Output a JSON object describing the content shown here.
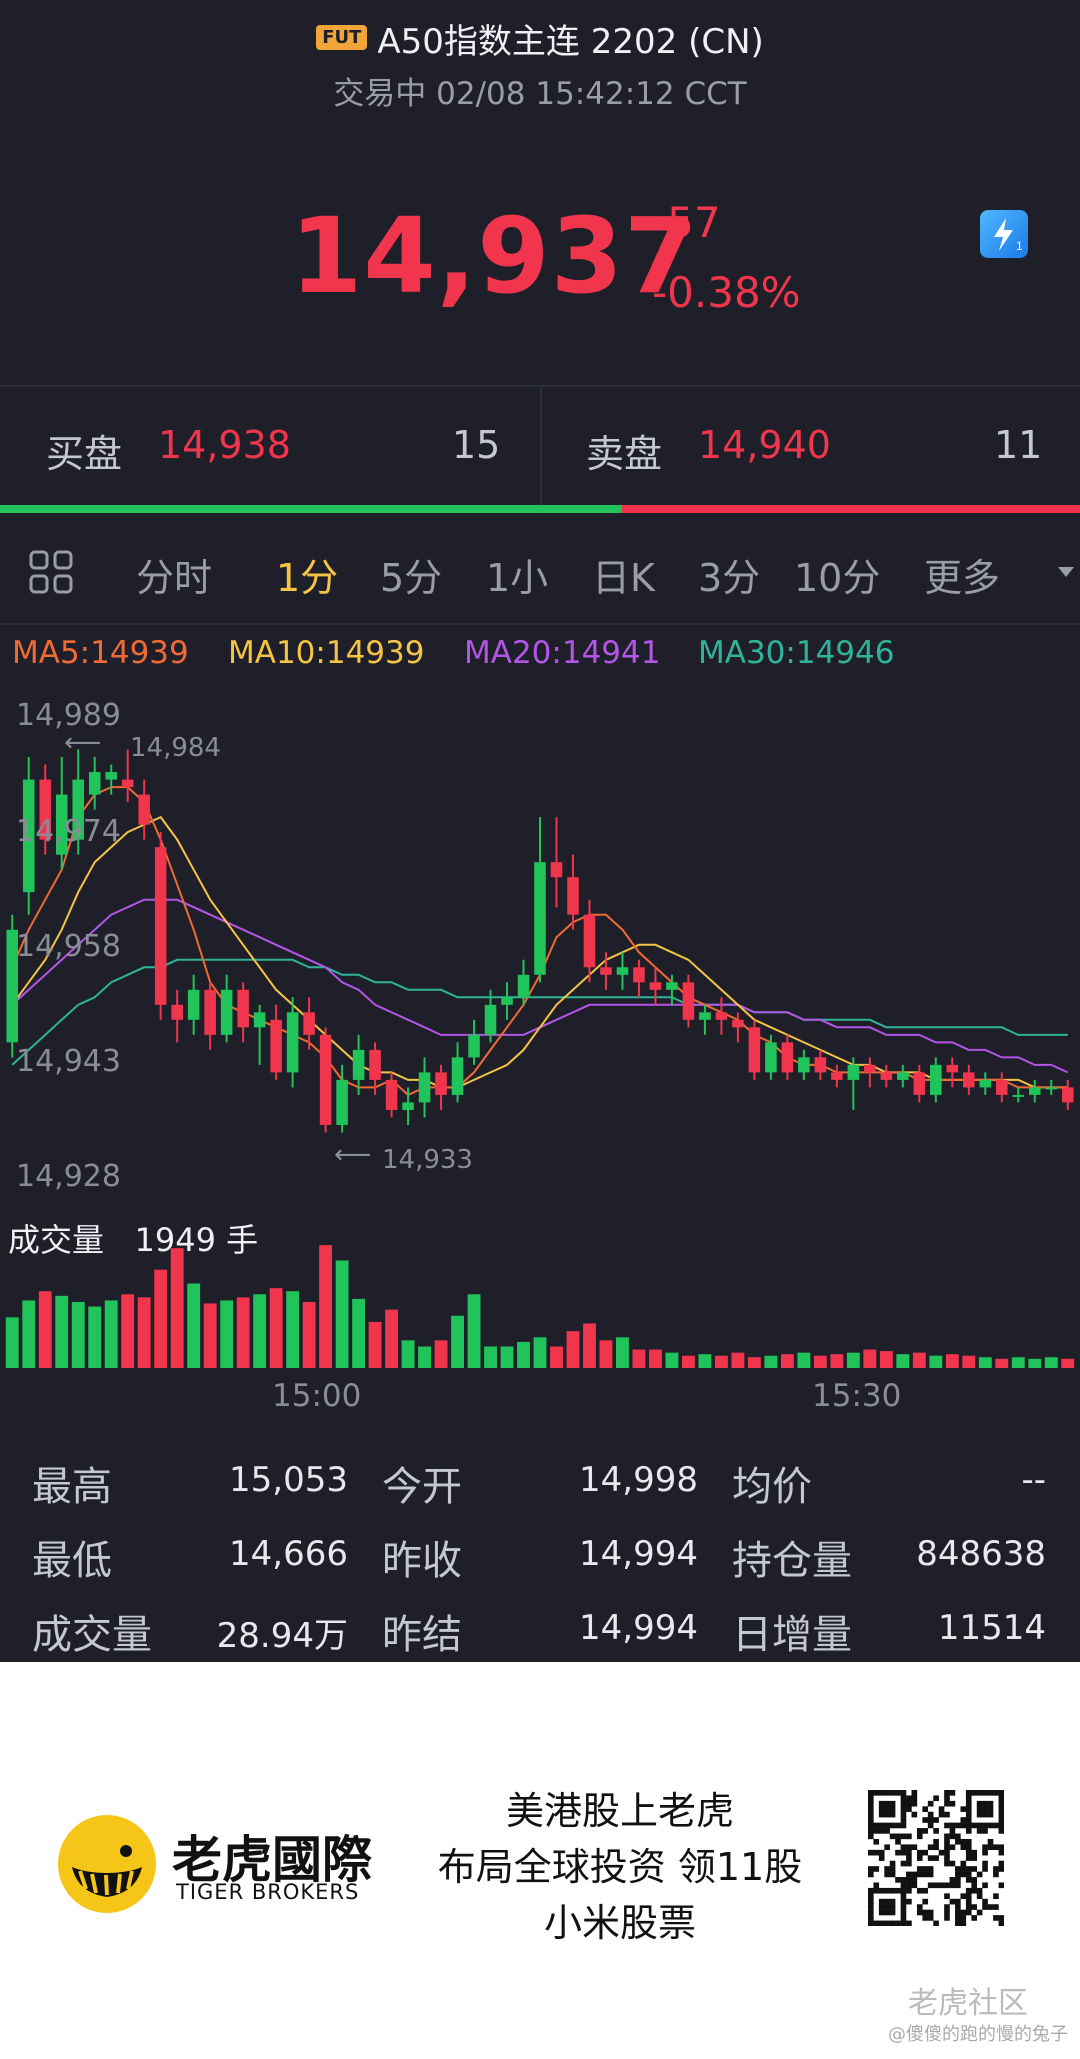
{
  "header": {
    "badge": "FUT",
    "title": "A50指数主连 2202 (CN)",
    "subtitle": "交易中 02/08 15:42:12 CCT",
    "price": "14,937",
    "change": "-57",
    "change_pct": "-0.38%"
  },
  "quote": {
    "bid_label": "买盘",
    "bid_price": "14,938",
    "bid_qty": "15",
    "ask_label": "卖盘",
    "ask_price": "14,940",
    "ask_qty": "11",
    "bid_ratio": 0.576
  },
  "tabs": [
    "分时",
    "1分",
    "5分",
    "1小",
    "日K",
    "3分",
    "10分",
    "更多"
  ],
  "active_tab": "1分",
  "ma": {
    "ma5": "MA5:14939",
    "ma10": "MA10:14939",
    "ma20": "MA20:14941",
    "ma30": "MA30:14946"
  },
  "colors": {
    "up": "#21c45a",
    "down": "#f0354d",
    "ma5": "#f06a35",
    "ma10": "#f5c445",
    "ma20": "#b455e8",
    "ma30": "#2fb39a",
    "active_tab": "#f5c445"
  },
  "chart_data": {
    "type": "candlestick",
    "y_ticks": [
      "14,989",
      "14,974",
      "14,958",
      "14,943",
      "14,928"
    ],
    "y_range": [
      14928,
      14989
    ],
    "high_marker": "14,984",
    "low_marker": "14,933",
    "x_ticks": [
      "15:00",
      "15:30"
    ],
    "candles": [
      {
        "o": 14945,
        "c": 14960,
        "h": 14962,
        "l": 14943
      },
      {
        "o": 14965,
        "c": 14980,
        "h": 14983,
        "l": 14962
      },
      {
        "o": 14980,
        "c": 14972,
        "h": 14982,
        "l": 14970
      },
      {
        "o": 14970,
        "c": 14978,
        "h": 14983,
        "l": 14968
      },
      {
        "o": 14972,
        "c": 14980,
        "h": 14984,
        "l": 14970
      },
      {
        "o": 14978,
        "c": 14981,
        "h": 14983,
        "l": 14976
      },
      {
        "o": 14980,
        "c": 14981,
        "h": 14982,
        "l": 14978
      },
      {
        "o": 14980,
        "c": 14979,
        "h": 14984,
        "l": 14977
      },
      {
        "o": 14978,
        "c": 14974,
        "h": 14980,
        "l": 14972
      },
      {
        "o": 14971,
        "c": 14950,
        "h": 14973,
        "l": 14948
      },
      {
        "o": 14950,
        "c": 14948,
        "h": 14952,
        "l": 14945
      },
      {
        "o": 14948,
        "c": 14952,
        "h": 14954,
        "l": 14946
      },
      {
        "o": 14952,
        "c": 14946,
        "h": 14953,
        "l": 14944
      },
      {
        "o": 14946,
        "c": 14952,
        "h": 14954,
        "l": 14945
      },
      {
        "o": 14952,
        "c": 14947,
        "h": 14953,
        "l": 14945
      },
      {
        "o": 14947,
        "c": 14949,
        "h": 14950,
        "l": 14942
      },
      {
        "o": 14948,
        "c": 14941,
        "h": 14950,
        "l": 14940
      },
      {
        "o": 14941,
        "c": 14949,
        "h": 14951,
        "l": 14939
      },
      {
        "o": 14949,
        "c": 14946,
        "h": 14951,
        "l": 14944
      },
      {
        "o": 14946,
        "c": 14934,
        "h": 14947,
        "l": 14933
      },
      {
        "o": 14934,
        "c": 14940,
        "h": 14942,
        "l": 14933
      },
      {
        "o": 14940,
        "c": 14944,
        "h": 14946,
        "l": 14938
      },
      {
        "o": 14944,
        "c": 14940,
        "h": 14945,
        "l": 14938
      },
      {
        "o": 14940,
        "c": 14936,
        "h": 14941,
        "l": 14935
      },
      {
        "o": 14936,
        "c": 14937,
        "h": 14939,
        "l": 14934
      },
      {
        "o": 14937,
        "c": 14941,
        "h": 14943,
        "l": 14935
      },
      {
        "o": 14941,
        "c": 14938,
        "h": 14942,
        "l": 14936
      },
      {
        "o": 14938,
        "c": 14943,
        "h": 14945,
        "l": 14937
      },
      {
        "o": 14943,
        "c": 14946,
        "h": 14948,
        "l": 14942
      },
      {
        "o": 14946,
        "c": 14950,
        "h": 14952,
        "l": 14945
      },
      {
        "o": 14950,
        "c": 14951,
        "h": 14953,
        "l": 14948
      },
      {
        "o": 14951,
        "c": 14954,
        "h": 14956,
        "l": 14950
      },
      {
        "o": 14954,
        "c": 14969,
        "h": 14975,
        "l": 14953
      },
      {
        "o": 14969,
        "c": 14967,
        "h": 14975,
        "l": 14963
      },
      {
        "o": 14967,
        "c": 14962,
        "h": 14970,
        "l": 14960
      },
      {
        "o": 14962,
        "c": 14955,
        "h": 14964,
        "l": 14953
      },
      {
        "o": 14955,
        "c": 14954,
        "h": 14957,
        "l": 14952
      },
      {
        "o": 14954,
        "c": 14955,
        "h": 14957,
        "l": 14952
      },
      {
        "o": 14955,
        "c": 14953,
        "h": 14956,
        "l": 14951
      },
      {
        "o": 14953,
        "c": 14952,
        "h": 14955,
        "l": 14950
      },
      {
        "o": 14952,
        "c": 14953,
        "h": 14954,
        "l": 14950
      },
      {
        "o": 14953,
        "c": 14948,
        "h": 14954,
        "l": 14947
      },
      {
        "o": 14948,
        "c": 14949,
        "h": 14950,
        "l": 14946
      },
      {
        "o": 14949,
        "c": 14948,
        "h": 14951,
        "l": 14946
      },
      {
        "o": 14948,
        "c": 14947,
        "h": 14949,
        "l": 14945
      },
      {
        "o": 14947,
        "c": 14941,
        "h": 14948,
        "l": 14940
      },
      {
        "o": 14941,
        "c": 14945,
        "h": 14946,
        "l": 14940
      },
      {
        "o": 14945,
        "c": 14941,
        "h": 14946,
        "l": 14940
      },
      {
        "o": 14941,
        "c": 14943,
        "h": 14944,
        "l": 14940
      },
      {
        "o": 14943,
        "c": 14941,
        "h": 14944,
        "l": 14940
      },
      {
        "o": 14941,
        "c": 14940,
        "h": 14942,
        "l": 14939
      },
      {
        "o": 14940,
        "c": 14942,
        "h": 14943,
        "l": 14936
      },
      {
        "o": 14942,
        "c": 14941,
        "h": 14943,
        "l": 14939
      },
      {
        "o": 14941,
        "c": 14940,
        "h": 14942,
        "l": 14939
      },
      {
        "o": 14940,
        "c": 14941,
        "h": 14942,
        "l": 14939
      },
      {
        "o": 14941,
        "c": 14938,
        "h": 14942,
        "l": 14937
      },
      {
        "o": 14938,
        "c": 14942,
        "h": 14943,
        "l": 14937
      },
      {
        "o": 14942,
        "c": 14941,
        "h": 14943,
        "l": 14939
      },
      {
        "o": 14941,
        "c": 14939,
        "h": 14942,
        "l": 14938
      },
      {
        "o": 14939,
        "c": 14940,
        "h": 14941,
        "l": 14938
      },
      {
        "o": 14940,
        "c": 14938,
        "h": 14941,
        "l": 14937
      },
      {
        "o": 14938,
        "c": 14938,
        "h": 14939,
        "l": 14937
      },
      {
        "o": 14938,
        "c": 14939,
        "h": 14940,
        "l": 14937
      },
      {
        "o": 14939,
        "c": 14939,
        "h": 14940,
        "l": 14938
      },
      {
        "o": 14939,
        "c": 14937,
        "h": 14940,
        "l": 14936
      }
    ],
    "ma5": [
      14955,
      14960,
      14964,
      14968,
      14975,
      14978,
      14979,
      14979,
      14977,
      14972,
      14966,
      14960,
      14953,
      14950,
      14949,
      14948,
      14947,
      14946,
      14945,
      14943,
      14940,
      14939,
      14939,
      14940,
      14938,
      14939,
      14939,
      14939,
      14941,
      14944,
      14947,
      14950,
      14954,
      14959,
      14961,
      14962,
      14962,
      14960,
      14957,
      14955,
      14953,
      14951,
      14950,
      14949,
      14948,
      14946,
      14945,
      14943,
      14942,
      14942,
      14941,
      14941,
      14941,
      14941,
      14941,
      14940,
      14940,
      14940,
      14940,
      14940,
      14940,
      14939,
      14939,
      14939,
      14939
    ],
    "ma10": [
      14950,
      14953,
      14956,
      14960,
      14965,
      14969,
      14971,
      14973,
      14974,
      14975,
      14972,
      14968,
      14964,
      14961,
      14958,
      14955,
      14952,
      14950,
      14948,
      14946,
      14944,
      14942,
      14941,
      14941,
      14940,
      14940,
      14939,
      14939,
      14940,
      14941,
      14942,
      14944,
      14947,
      14950,
      14952,
      14954,
      14956,
      14957,
      14958,
      14958,
      14957,
      14956,
      14954,
      14952,
      14950,
      14948,
      14947,
      14946,
      14945,
      14944,
      14943,
      14942,
      14942,
      14941,
      14941,
      14941,
      14940,
      14940,
      14940,
      14940,
      14940,
      14940,
      14939,
      14939,
      14939
    ],
    "ma20": [
      14950,
      14952,
      14954,
      14956,
      14958,
      14960,
      14962,
      14963,
      14964,
      14964,
      14964,
      14963,
      14962,
      14961,
      14960,
      14959,
      14958,
      14957,
      14956,
      14955,
      14953,
      14952,
      14950,
      14949,
      14948,
      14947,
      14946,
      14946,
      14946,
      14946,
      14946,
      14946,
      14947,
      14948,
      14949,
      14950,
      14950,
      14950,
      14950,
      14950,
      14950,
      14950,
      14950,
      14950,
      14950,
      14949,
      14949,
      14949,
      14948,
      14948,
      14947,
      14947,
      14947,
      14946,
      14946,
      14946,
      14945,
      14945,
      14944,
      14944,
      14943,
      14943,
      14942,
      14942,
      14941
    ],
    "ma30": [
      14942,
      14944,
      14946,
      14948,
      14950,
      14951,
      14953,
      14954,
      14955,
      14955,
      14956,
      14956,
      14956,
      14956,
      14956,
      14956,
      14956,
      14956,
      14955,
      14955,
      14954,
      14954,
      14953,
      14953,
      14952,
      14952,
      14952,
      14951,
      14951,
      14951,
      14951,
      14951,
      14951,
      14951,
      14951,
      14951,
      14951,
      14951,
      14951,
      14951,
      14951,
      14950,
      14950,
      14950,
      14950,
      14949,
      14949,
      14949,
      14948,
      14948,
      14948,
      14948,
      14948,
      14947,
      14947,
      14947,
      14947,
      14947,
      14947,
      14947,
      14947,
      14946,
      14946,
      14946,
      14946
    ],
    "volume_label": "成交量",
    "volume_value": "1949 手",
    "volumes": [
      33,
      44,
      50,
      47,
      43,
      40,
      44,
      48,
      46,
      64,
      78,
      55,
      42,
      44,
      46,
      48,
      52,
      50,
      43,
      80,
      70,
      45,
      30,
      38,
      18,
      14,
      18,
      34,
      48,
      14,
      14,
      17,
      20,
      14,
      24,
      29,
      18,
      20,
      12,
      12,
      10,
      8,
      9,
      8,
      10,
      7,
      8,
      9,
      10,
      8,
      9,
      10,
      12,
      11,
      9,
      10,
      8,
      9,
      8,
      7,
      6,
      7,
      6,
      7,
      6
    ]
  },
  "stats": [
    [
      {
        "label": "最高",
        "value": "15,053"
      },
      {
        "label": "今开",
        "value": "14,998"
      },
      {
        "label": "均价",
        "value": "--"
      }
    ],
    [
      {
        "label": "最低",
        "value": "14,666"
      },
      {
        "label": "昨收",
        "value": "14,994"
      },
      {
        "label": "持仓量",
        "value": "848638"
      }
    ],
    [
      {
        "label": "成交量",
        "value": "28.94万"
      },
      {
        "label": "昨结",
        "value": "14,994"
      },
      {
        "label": "日增量",
        "value": "11514"
      }
    ]
  ],
  "footer": {
    "brand_cn": "老虎國際",
    "brand_en": "TIGER BROKERS",
    "promo_lines": [
      "美港股上老虎",
      "布局全球投资 领11股",
      "小米股票"
    ],
    "watermark": "老虎社区",
    "watermark_user": "@傻傻的跑的慢的兔子"
  }
}
